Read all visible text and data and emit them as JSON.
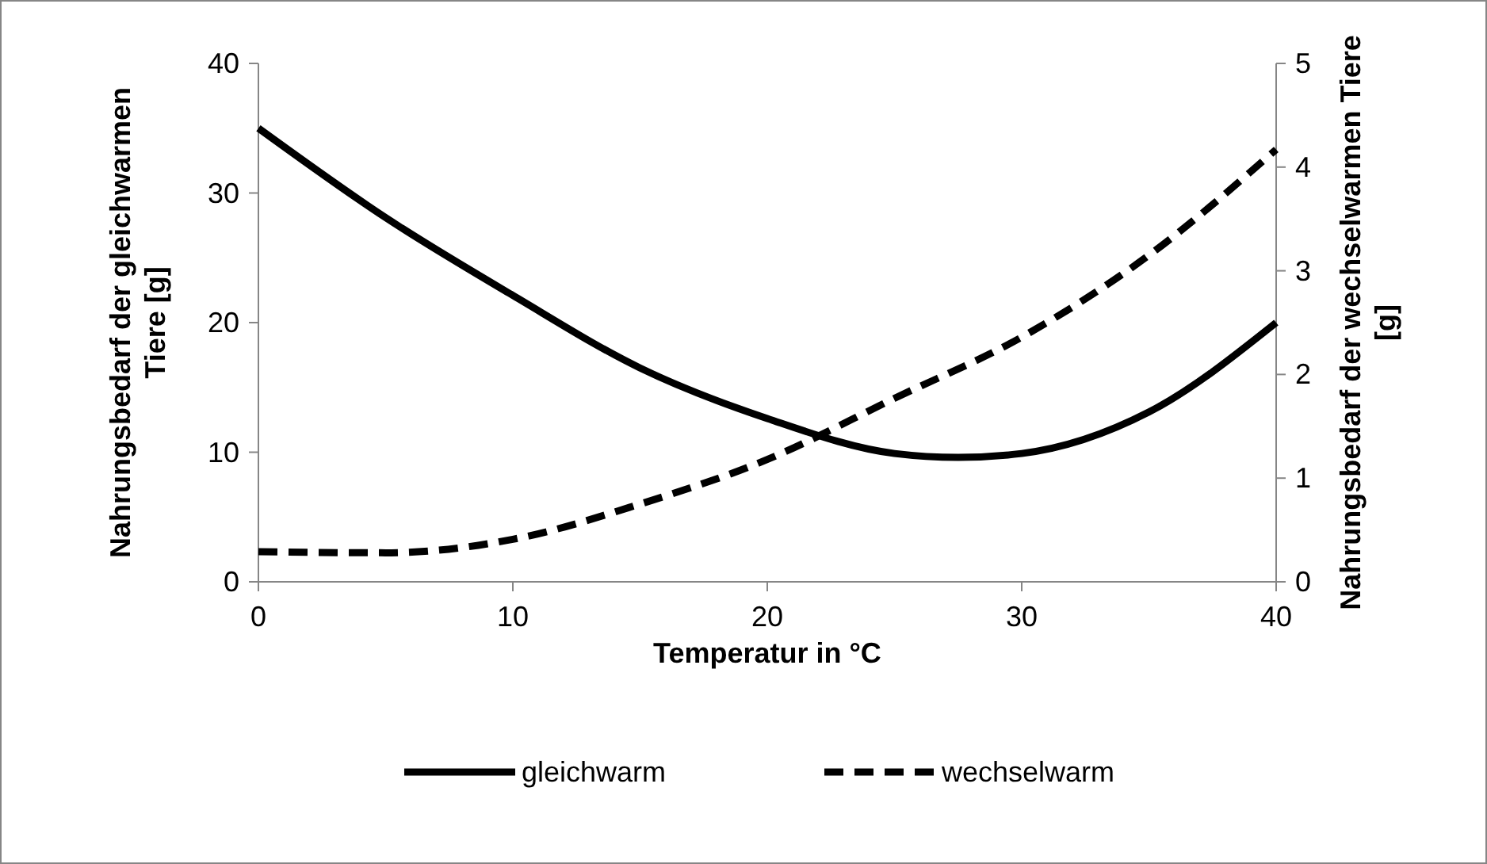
{
  "chart_data": {
    "type": "line",
    "xlabel": "Temperatur in °C",
    "ylabel": "Nahrungsbedarf der gleichwarmen Tiere [g]",
    "y2label": "Nahrungsbedarf der wechselwarmen Tiere [g]",
    "xlim": [
      0,
      40
    ],
    "xticks": [
      0,
      10,
      20,
      30,
      40
    ],
    "ylim": [
      0,
      40
    ],
    "yticks": [
      0,
      10,
      20,
      30,
      40
    ],
    "y2lim": [
      0,
      5
    ],
    "y2ticks": [
      0,
      1,
      2,
      3,
      4,
      5
    ],
    "grid": false,
    "legend": "bottom",
    "marker": "none",
    "series": [
      {
        "name": "gleichwarm",
        "color": "#000000",
        "line_style": "solid",
        "x": [
          0,
          5,
          10,
          15,
          20,
          25,
          27.5,
          30,
          35,
          40
        ],
        "values": [
          35,
          28.1,
          22.1,
          16.5,
          12.6,
          9.9,
          9.6,
          9.9,
          13.1,
          20
        ]
      },
      {
        "name": "wechselwarm",
        "color": "#000000",
        "line_style": "dashed",
        "axis": "y2",
        "x": [
          0,
          5,
          10,
          15,
          20,
          25,
          30,
          35,
          40
        ],
        "values": [
          0.29,
          0.28,
          0.41,
          0.75,
          1.18,
          1.77,
          2.36,
          3.15,
          4.17
        ]
      }
    ]
  }
}
